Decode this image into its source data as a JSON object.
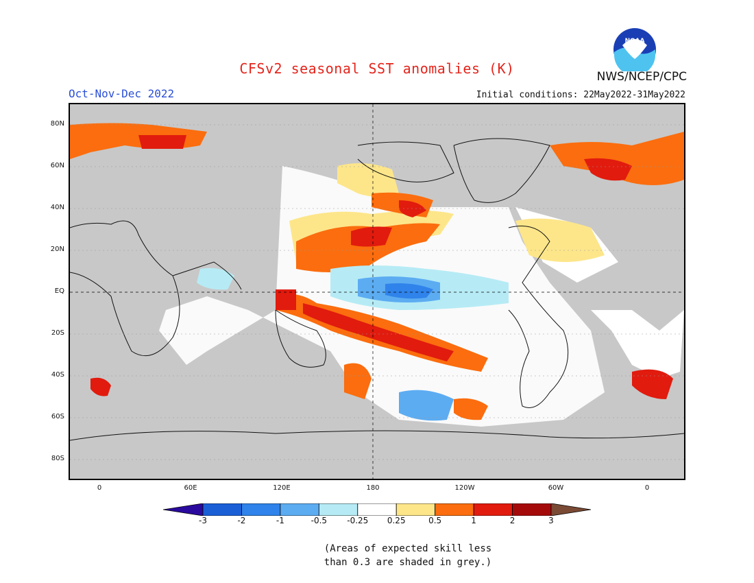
{
  "title": "CFSv2 seasonal SST anomalies (K)",
  "season": "Oct-Nov-Dec 2022",
  "initial_conditions": "Initial conditions: 22May2022-31May2022",
  "agency": "NWS/NCEP/CPC",
  "logo_text": "NOAA",
  "map": {
    "lat_labels": [
      "80N",
      "60N",
      "40N",
      "20N",
      "EQ",
      "20S",
      "40S",
      "60S",
      "80S"
    ],
    "lon_labels": [
      "0",
      "60E",
      "120E",
      "180",
      "120W",
      "60W",
      "0"
    ],
    "land_color": "#c8c8c8",
    "ocean_neutral_color": "#ffffff"
  },
  "colorbar": {
    "labels": [
      "-3",
      "-2",
      "-1",
      "-0.5",
      "-0.25",
      "0.25",
      "0.5",
      "1",
      "2",
      "3"
    ],
    "colors": [
      "#2a0a9e",
      "#1a5fd6",
      "#2f83ea",
      "#5cacf2",
      "#b6ebf5",
      "#ffffff",
      "#fde68a",
      "#fb6d0e",
      "#e11b0e",
      "#a50a0a",
      "#7a4a34"
    ]
  },
  "note_line1": "(Areas of expected skill less",
  "note_line2": "than 0.3 are shaded in grey.)"
}
